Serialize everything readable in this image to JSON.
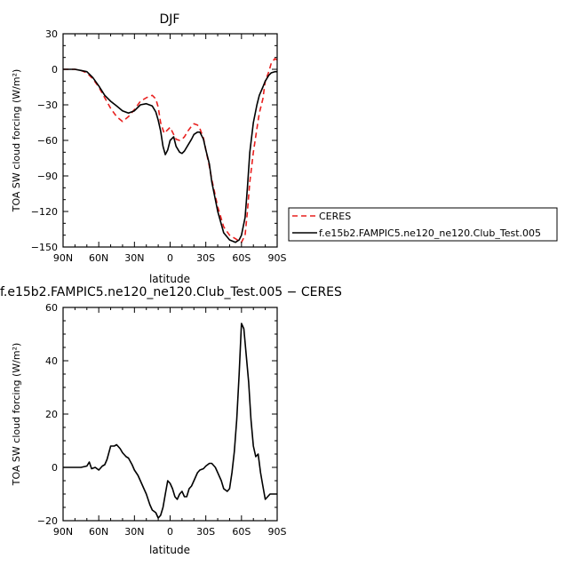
{
  "chart_data": [
    {
      "type": "line",
      "title": "DJF",
      "xlabel": "latitude",
      "ylabel": "TOA SW cloud forcing (W/m²)",
      "xlim": [
        90,
        -90
      ],
      "ylim": [
        -150,
        30
      ],
      "xticks": [
        90,
        60,
        30,
        0,
        -30,
        -60,
        -90
      ],
      "xtick_labels": [
        "90N",
        "60N",
        "30N",
        "0",
        "30S",
        "60S",
        "90S"
      ],
      "yticks": [
        30,
        0,
        -30,
        -60,
        -90,
        -120,
        -150
      ],
      "ytick_labels": [
        "30",
        "0",
        "−30",
        "−60",
        "−90",
        "−120",
        "−150"
      ],
      "legend_position": "right",
      "series": [
        {
          "name": "CERES",
          "color": "#e8201f",
          "dash": "6,4",
          "x": [
            90,
            80,
            75,
            70,
            65,
            60,
            55,
            50,
            45,
            40,
            35,
            30,
            25,
            20,
            15,
            12,
            10,
            8,
            5,
            3,
            0,
            -3,
            -5,
            -8,
            -10,
            -12,
            -15,
            -18,
            -20,
            -23,
            -25,
            -28,
            -30,
            -33,
            -35,
            -40,
            -45,
            -50,
            -55,
            -58,
            -60,
            -63,
            -65,
            -67,
            -70,
            -73,
            -75,
            -78,
            -80,
            -83,
            -85,
            -88,
            -90
          ],
          "values": [
            0,
            0,
            -1,
            -3,
            -8,
            -15,
            -24,
            -33,
            -40,
            -44,
            -40,
            -34,
            -27,
            -24,
            -22,
            -25,
            -32,
            -45,
            -54,
            -52,
            -49,
            -55,
            -59,
            -60,
            -59,
            -57,
            -52,
            -48,
            -46,
            -47,
            -50,
            -58,
            -68,
            -82,
            -93,
            -116,
            -133,
            -140,
            -143,
            -145,
            -146,
            -140,
            -120,
            -95,
            -70,
            -50,
            -37,
            -25,
            -10,
            -2,
            5,
            9,
            8
          ]
        },
        {
          "name": "f.e15b2.FAMPIC5.ne120_ne120.Club_Test.005",
          "color": "#000000",
          "dash": "",
          "x": [
            90,
            80,
            75,
            70,
            65,
            60,
            55,
            50,
            45,
            40,
            35,
            30,
            25,
            20,
            15,
            12,
            10,
            8,
            6,
            4,
            2,
            0,
            -3,
            -5,
            -8,
            -10,
            -12,
            -15,
            -18,
            -20,
            -23,
            -25,
            -28,
            -30,
            -33,
            -35,
            -40,
            -45,
            -50,
            -55,
            -58,
            -60,
            -63,
            -65,
            -67,
            -70,
            -73,
            -75,
            -78,
            -80,
            -83,
            -85,
            -88,
            -90
          ],
          "values": [
            0,
            0,
            -1,
            -2,
            -7,
            -14,
            -22,
            -27,
            -31,
            -35,
            -37,
            -35,
            -30,
            -29,
            -31,
            -36,
            -43,
            -52,
            -65,
            -72,
            -68,
            -60,
            -57,
            -65,
            -70,
            -71,
            -69,
            -64,
            -59,
            -55,
            -53,
            -53,
            -59,
            -68,
            -80,
            -95,
            -120,
            -138,
            -144,
            -146,
            -144,
            -140,
            -125,
            -100,
            -70,
            -45,
            -30,
            -22,
            -15,
            -10,
            -5,
            -3,
            -2,
            -2
          ]
        }
      ]
    },
    {
      "type": "line",
      "title": "f.e15b2.FAMPIC5.ne120_ne120.Club_Test.005  −  CERES",
      "xlabel": "latitude",
      "ylabel": "TOA SW cloud forcing (W/m²)",
      "xlim": [
        90,
        -90
      ],
      "ylim": [
        -20,
        60
      ],
      "xticks": [
        90,
        60,
        30,
        0,
        -30,
        -60,
        -90
      ],
      "xtick_labels": [
        "90N",
        "60N",
        "30N",
        "0",
        "30S",
        "60S",
        "90S"
      ],
      "yticks": [
        60,
        40,
        20,
        0,
        -20
      ],
      "ytick_labels": [
        "60",
        "40",
        "20",
        "0",
        "−20"
      ],
      "series": [
        {
          "color": "#000000",
          "dash": "",
          "x": [
            90,
            80,
            75,
            70,
            68,
            66,
            63,
            60,
            57,
            55,
            53,
            50,
            47,
            45,
            42,
            40,
            37,
            35,
            32,
            30,
            27,
            25,
            22,
            20,
            17,
            15,
            12,
            10,
            8,
            6,
            4,
            2,
            0,
            -2,
            -4,
            -6,
            -8,
            -10,
            -12,
            -14,
            -16,
            -18,
            -20,
            -23,
            -25,
            -28,
            -30,
            -33,
            -35,
            -38,
            -40,
            -43,
            -45,
            -48,
            -50,
            -52,
            -54,
            -56,
            -58,
            -60,
            -62,
            -64,
            -66,
            -68,
            -70,
            -72,
            -74,
            -76,
            -78,
            -80,
            -82,
            -84,
            -86,
            -88,
            -90
          ],
          "values": [
            0,
            0,
            0,
            0.5,
            2,
            -0.5,
            0,
            -1,
            0.5,
            1,
            3,
            8,
            8,
            8.5,
            7,
            5.5,
            4,
            3.5,
            1,
            -1,
            -3,
            -5,
            -8,
            -10,
            -14,
            -16,
            -17,
            -19,
            -18,
            -15,
            -10,
            -5,
            -6,
            -8,
            -11,
            -12,
            -10,
            -9,
            -11,
            -11,
            -8,
            -7,
            -5,
            -2,
            -1,
            -0.5,
            0.5,
            1.5,
            1.5,
            0,
            -2,
            -5,
            -8,
            -9,
            -8,
            -2,
            6,
            18,
            35,
            54,
            52,
            42,
            32,
            18,
            8,
            4,
            5,
            -2,
            -7,
            -12,
            -11,
            -10,
            -10,
            -10,
            -10
          ]
        }
      ]
    }
  ]
}
